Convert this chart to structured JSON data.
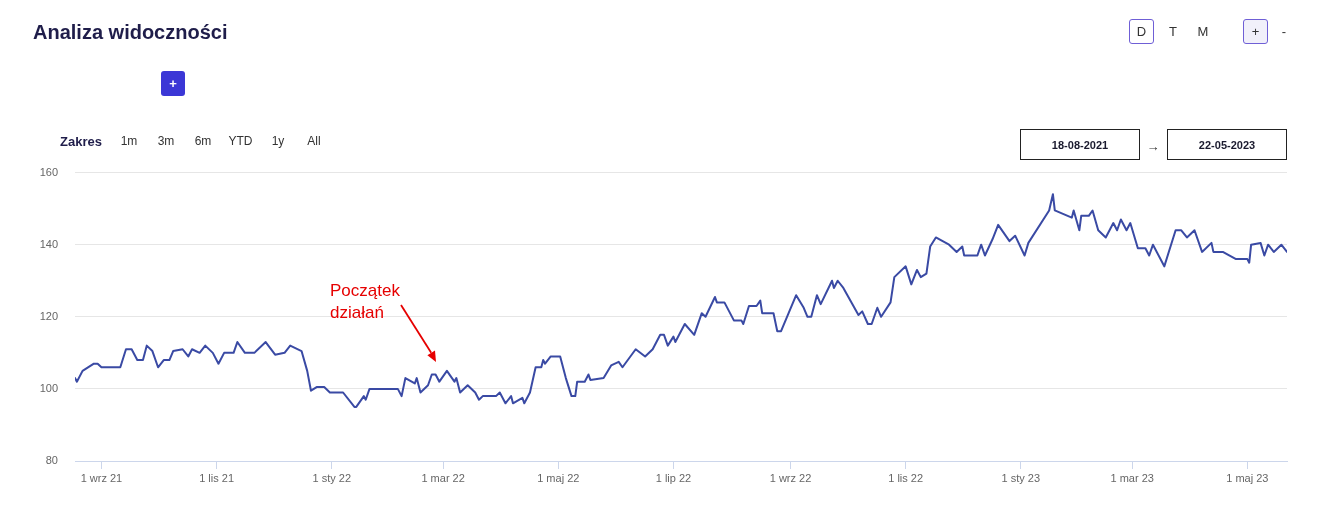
{
  "chart_data": {
    "type": "line",
    "title": "Analiza widoczności",
    "x": [
      "2021-08-18",
      "2021-08-19",
      "2021-08-22",
      "2021-08-28",
      "2021-08-30",
      "2021-09-01",
      "2021-09-11",
      "2021-09-14",
      "2021-09-17",
      "2021-09-20",
      "2021-09-23",
      "2021-09-25",
      "2021-09-28",
      "2021-10-01",
      "2021-10-04",
      "2021-10-07",
      "2021-10-09",
      "2021-10-14",
      "2021-10-17",
      "2021-10-19",
      "2021-10-23",
      "2021-10-26",
      "2021-10-30",
      "2021-11-02",
      "2021-11-05",
      "2021-11-10",
      "2021-11-12",
      "2021-11-16",
      "2021-11-21",
      "2021-11-27",
      "2021-12-02",
      "2021-12-07",
      "2021-12-10",
      "2021-12-16",
      "2021-12-19",
      "2021-12-21",
      "2021-12-24",
      "2021-12-28",
      "2021-12-31",
      "2022-01-07",
      "2022-01-13",
      "2022-01-14",
      "2022-01-18",
      "2022-01-19",
      "2022-01-21",
      "2022-02-05",
      "2022-02-07",
      "2022-02-09",
      "2022-02-14",
      "2022-02-15",
      "2022-02-17",
      "2022-02-21",
      "2022-02-23",
      "2022-02-25",
      "2022-02-27",
      "2022-03-03",
      "2022-03-07",
      "2022-03-08",
      "2022-03-10",
      "2022-03-14",
      "2022-03-18",
      "2022-03-20",
      "2022-03-22",
      "2022-03-29",
      "2022-03-31",
      "2022-04-03",
      "2022-04-06",
      "2022-04-07",
      "2022-04-12",
      "2022-04-13",
      "2022-04-16",
      "2022-04-19",
      "2022-04-22",
      "2022-04-23",
      "2022-04-24",
      "2022-04-27",
      "2022-05-02",
      "2022-05-05",
      "2022-05-08",
      "2022-05-10",
      "2022-05-11",
      "2022-05-15",
      "2022-05-17",
      "2022-05-18",
      "2022-05-25",
      "2022-05-29",
      "2022-06-02",
      "2022-06-04",
      "2022-06-11",
      "2022-06-16",
      "2022-06-20",
      "2022-06-24",
      "2022-06-26",
      "2022-06-28",
      "2022-07-01",
      "2022-07-02",
      "2022-07-07",
      "2022-07-12",
      "2022-07-16",
      "2022-07-18",
      "2022-07-23",
      "2022-07-24",
      "2022-07-28",
      "2022-08-02",
      "2022-08-06",
      "2022-08-07",
      "2022-08-10",
      "2022-08-14",
      "2022-08-16",
      "2022-08-17",
      "2022-08-23",
      "2022-08-25",
      "2022-08-27",
      "2022-08-31",
      "2022-09-04",
      "2022-09-08",
      "2022-09-10",
      "2022-09-12",
      "2022-09-15",
      "2022-09-17",
      "2022-09-23",
      "2022-09-24",
      "2022-09-26",
      "2022-09-29",
      "2022-10-07",
      "2022-10-09",
      "2022-10-12",
      "2022-10-14",
      "2022-10-17",
      "2022-10-19",
      "2022-10-24",
      "2022-10-26",
      "2022-11-01",
      "2022-11-04",
      "2022-11-07",
      "2022-11-09",
      "2022-11-12",
      "2022-11-14",
      "2022-11-17",
      "2022-11-24",
      "2022-11-28",
      "2022-12-01",
      "2022-12-02",
      "2022-12-09",
      "2022-12-11",
      "2022-12-13",
      "2022-12-17",
      "2022-12-20",
      "2022-12-26",
      "2022-12-29",
      "2023-01-03",
      "2023-01-05",
      "2023-01-16",
      "2023-01-18",
      "2023-01-19",
      "2023-01-28",
      "2023-01-29",
      "2023-02-01",
      "2023-02-02",
      "2023-02-06",
      "2023-02-08",
      "2023-02-11",
      "2023-02-15",
      "2023-02-19",
      "2023-02-21",
      "2023-02-23",
      "2023-02-26",
      "2023-02-28",
      "2023-03-04",
      "2023-03-08",
      "2023-03-10",
      "2023-03-12",
      "2023-03-18",
      "2023-03-24",
      "2023-03-27",
      "2023-03-30",
      "2023-04-03",
      "2023-04-07",
      "2023-04-12",
      "2023-04-13",
      "2023-04-18",
      "2023-04-25",
      "2023-05-01",
      "2023-05-02",
      "2023-05-03",
      "2023-05-08",
      "2023-05-10",
      "2023-05-12",
      "2023-05-15",
      "2023-05-19",
      "2023-05-22"
    ],
    "values": [
      103,
      102,
      105,
      107,
      107,
      106,
      106,
      111,
      111,
      108,
      108,
      112,
      110.5,
      106,
      108,
      108,
      110.5,
      111,
      109,
      111,
      110,
      112,
      110,
      107,
      110,
      110,
      113,
      110,
      110,
      113,
      109.5,
      110,
      112,
      110.5,
      105,
      99.5,
      100.5,
      100.5,
      99,
      99,
      95,
      95,
      98,
      97,
      100,
      100,
      98,
      103,
      101.5,
      103,
      99,
      101,
      104,
      104,
      102,
      105,
      102,
      103,
      99,
      101,
      99,
      97,
      98,
      98,
      99,
      96,
      98,
      96,
      97.5,
      96,
      99,
      106,
      106,
      108,
      107,
      109,
      109,
      103,
      98,
      98,
      102,
      102,
      104,
      102.5,
      103,
      106.5,
      107.5,
      106,
      111,
      109,
      111,
      115,
      115,
      112,
      114.5,
      113,
      118,
      115,
      121,
      120,
      125.5,
      124,
      124,
      119,
      119,
      118,
      123,
      123,
      124.5,
      121,
      121,
      116,
      116,
      121,
      126,
      122.5,
      120,
      120,
      126,
      123.5,
      130,
      128,
      130,
      128,
      120.5,
      121.5,
      118,
      118,
      122.5,
      120,
      124,
      131,
      134,
      129,
      133,
      131,
      132,
      139.5,
      142,
      140,
      138,
      139.5,
      137,
      137,
      140,
      137,
      141.5,
      145.5,
      141,
      142.5,
      137,
      140.5,
      149.5,
      154,
      149.5,
      147.5,
      149.5,
      144,
      148,
      148,
      149.5,
      144,
      142,
      146,
      144,
      147,
      144,
      146,
      139,
      139,
      137,
      140,
      134,
      144,
      144,
      142,
      144,
      138,
      140.5,
      138,
      138,
      136,
      136,
      135,
      140,
      140.5,
      137,
      140,
      138,
      140,
      138
    ],
    "color": "#3a4aa4",
    "xlim": [
      "2021-08-18",
      "2023-05-22"
    ],
    "xticks": [
      {
        "value": "2021-09-01",
        "label": "1 wrz 21"
      },
      {
        "value": "2021-11-01",
        "label": "1 lis 21"
      },
      {
        "value": "2022-01-01",
        "label": "1 sty 22"
      },
      {
        "value": "2022-03-01",
        "label": "1 mar 22"
      },
      {
        "value": "2022-05-01",
        "label": "1 maj 22"
      },
      {
        "value": "2022-07-01",
        "label": "1 lip 22"
      },
      {
        "value": "2022-09-01",
        "label": "1 wrz 22"
      },
      {
        "value": "2022-11-01",
        "label": "1 lis 22"
      },
      {
        "value": "2023-01-01",
        "label": "1 sty 23"
      },
      {
        "value": "2023-03-01",
        "label": "1 mar 23"
      },
      {
        "value": "2023-05-01",
        "label": "1 maj 23"
      }
    ],
    "ylim": [
      80,
      160
    ],
    "yticks": [
      80,
      100,
      120,
      140,
      160
    ],
    "grid": "y",
    "marker": "none",
    "annotations": [
      "D",
      "T",
      "M",
      "+",
      "-",
      "+",
      "Zakres",
      "1m",
      "3m",
      "6m",
      "YTD",
      "1y",
      "All",
      "18-08-2021",
      "→",
      "22-05-2023",
      "Początek\ndziałań"
    ]
  }
}
